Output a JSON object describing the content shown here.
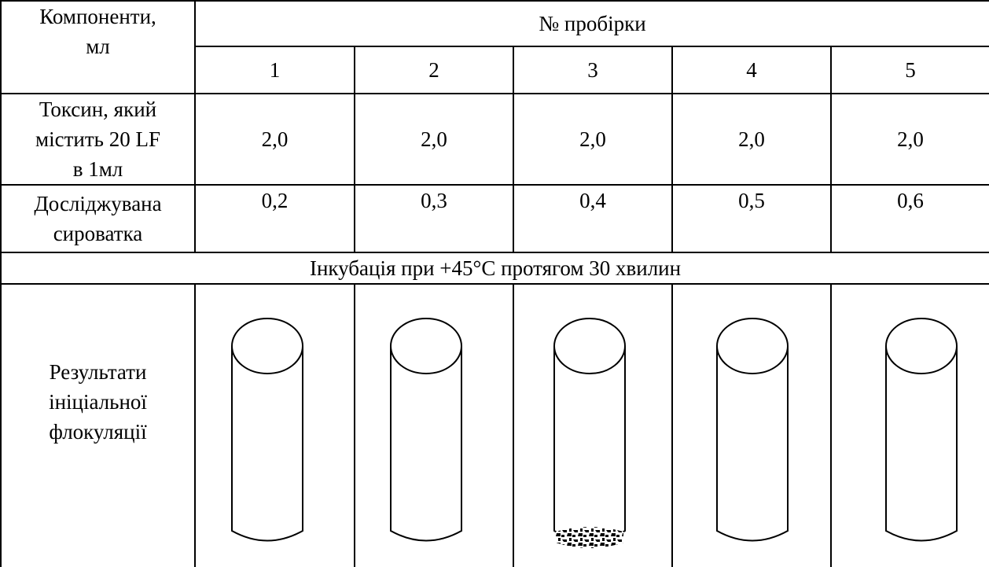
{
  "table": {
    "components_header": [
      "Компоненти,",
      "мл"
    ],
    "tubes_header": "№ пробірки",
    "tube_numbers": [
      "1",
      "2",
      "3",
      "4",
      "5"
    ],
    "rows": [
      {
        "label": [
          "Токсин, який",
          "містить 20 LF",
          "в 1мл"
        ],
        "values": [
          "2,0",
          "2,0",
          "2,0",
          "2,0",
          "2,0"
        ]
      },
      {
        "label": [
          "Досліджувана",
          "сироватка"
        ],
        "values": [
          "0,2",
          "0,3",
          "0,4",
          "0,5",
          "0,6"
        ]
      }
    ],
    "incubation": "Інкубація при +45°С протягом 30 хвилин",
    "result_label": [
      "Результати",
      "ініціальної",
      "флокуляції"
    ]
  }
}
